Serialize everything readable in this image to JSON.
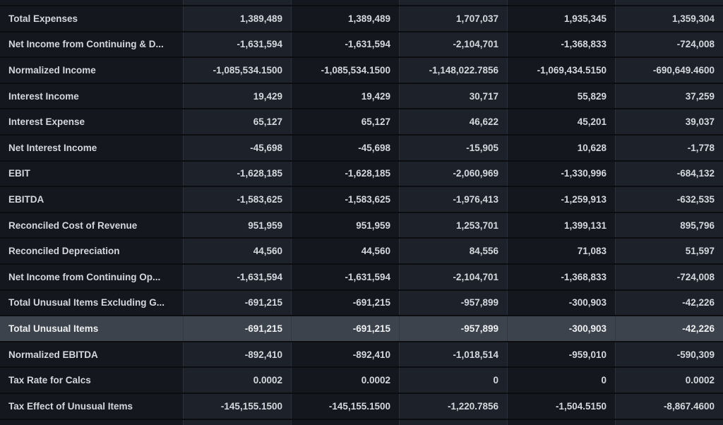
{
  "app": {
    "description": "Dark-themed financial statement data table",
    "colors": {
      "background": "#0b0d11",
      "cell_dark": "#14171e",
      "cell_light": "#1d222a",
      "row_highlight": "#3d434c",
      "grid_vertical": "#2b313a",
      "grid_horizontal": "#0b0d11",
      "text": "#d4d8dd",
      "text_highlight": "#eef0f2"
    }
  },
  "table": {
    "rows": [
      {
        "label": "Total Expenses",
        "values": [
          "1,389,489",
          "1,389,489",
          "1,707,037",
          "1,935,345",
          "1,359,304"
        ],
        "highlighted": false
      },
      {
        "label": "Net Income from Continuing & D...",
        "values": [
          "-1,631,594",
          "-1,631,594",
          "-2,104,701",
          "-1,368,833",
          "-724,008"
        ],
        "highlighted": false
      },
      {
        "label": "Normalized Income",
        "values": [
          "-1,085,534.1500",
          "-1,085,534.1500",
          "-1,148,022.7856",
          "-1,069,434.5150",
          "-690,649.4600"
        ],
        "highlighted": false
      },
      {
        "label": "Interest Income",
        "values": [
          "19,429",
          "19,429",
          "30,717",
          "55,829",
          "37,259"
        ],
        "highlighted": false
      },
      {
        "label": "Interest Expense",
        "values": [
          "65,127",
          "65,127",
          "46,622",
          "45,201",
          "39,037"
        ],
        "highlighted": false
      },
      {
        "label": "Net Interest Income",
        "values": [
          "-45,698",
          "-45,698",
          "-15,905",
          "10,628",
          "-1,778"
        ],
        "highlighted": false
      },
      {
        "label": "EBIT",
        "values": [
          "-1,628,185",
          "-1,628,185",
          "-2,060,969",
          "-1,330,996",
          "-684,132"
        ],
        "highlighted": false
      },
      {
        "label": "EBITDA",
        "values": [
          "-1,583,625",
          "-1,583,625",
          "-1,976,413",
          "-1,259,913",
          "-632,535"
        ],
        "highlighted": false
      },
      {
        "label": "Reconciled Cost of Revenue",
        "values": [
          "951,959",
          "951,959",
          "1,253,701",
          "1,399,131",
          "895,796"
        ],
        "highlighted": false
      },
      {
        "label": "Reconciled Depreciation",
        "values": [
          "44,560",
          "44,560",
          "84,556",
          "71,083",
          "51,597"
        ],
        "highlighted": false
      },
      {
        "label": "Net Income from Continuing Op...",
        "values": [
          "-1,631,594",
          "-1,631,594",
          "-2,104,701",
          "-1,368,833",
          "-724,008"
        ],
        "highlighted": false
      },
      {
        "label": "Total Unusual Items Excluding G...",
        "values": [
          "-691,215",
          "-691,215",
          "-957,899",
          "-300,903",
          "-42,226"
        ],
        "highlighted": false
      },
      {
        "label": "Total Unusual Items",
        "values": [
          "-691,215",
          "-691,215",
          "-957,899",
          "-300,903",
          "-42,226"
        ],
        "highlighted": true
      },
      {
        "label": "Normalized EBITDA",
        "values": [
          "-892,410",
          "-892,410",
          "-1,018,514",
          "-959,010",
          "-590,309"
        ],
        "highlighted": false
      },
      {
        "label": "Tax Rate for Calcs",
        "values": [
          "0.0002",
          "0.0002",
          "0",
          "0",
          "0.0002"
        ],
        "highlighted": false
      },
      {
        "label": "Tax Effect of Unusual Items",
        "values": [
          "-145,155.1500",
          "-145,155.1500",
          "-1,220.7856",
          "-1,504.5150",
          "-8,867.4600"
        ],
        "highlighted": false
      }
    ]
  }
}
